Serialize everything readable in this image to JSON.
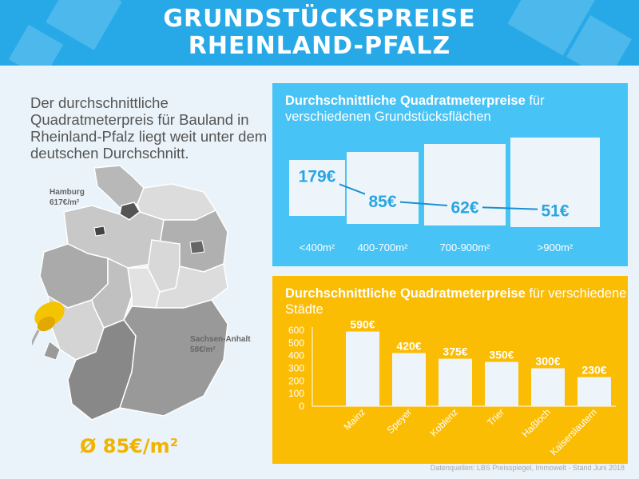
{
  "header": {
    "title_line1": "GRUNDSTÜCKSPREISE",
    "title_line2": "RHEINLAND-PFALZ"
  },
  "intro": {
    "text": "Der durchschnittliche Quadratmeterpreis für Bauland in Rheinland-Pfalz liegt weit unter dem deutschen Durchschnitt."
  },
  "map": {
    "hamburg_name": "Hamburg",
    "hamburg_price": "617€/m²",
    "sachsen_name": "Sachsen-Anhalt",
    "sachsen_price": "58€/m²",
    "average": "Ø 85€/m²"
  },
  "panel_area": {
    "title_bold": "Durchschnittliche Quadratmeterpreise",
    "title_rest": " für verschiedenen Grundstücksflächen"
  },
  "panel_city": {
    "title_bold": "Durchschnittliche Quadratmeterpreise",
    "title_rest": " für verschiedene Städte"
  },
  "source": "Datenquellen: LBS Preisspiegel, Immowelt - Stand Juni 2018",
  "colors": {
    "header": "#27a9e8",
    "panel_blue": "#47c3f6",
    "panel_yellow": "#fbbc04",
    "accent_yellow": "#f0b400"
  },
  "chart_data": [
    {
      "type": "line",
      "categories": [
        "<400m²",
        "400-700m²",
        "700-900m²",
        ">900m²"
      ],
      "values": [
        179,
        85,
        62,
        51
      ],
      "labels": [
        "179€",
        "85€",
        "62€",
        "51€"
      ]
    },
    {
      "type": "bar",
      "categories": [
        "Mainz",
        "Speyer",
        "Koblenz",
        "Trier",
        "Haßloch",
        "Kaiserslautern"
      ],
      "values": [
        590,
        420,
        375,
        350,
        300,
        230
      ],
      "labels": [
        "590€",
        "420€",
        "375€",
        "350€",
        "300€",
        "230€"
      ],
      "yticks": [
        0,
        100,
        200,
        300,
        400,
        500,
        600
      ],
      "ylim": [
        0,
        600
      ]
    }
  ]
}
